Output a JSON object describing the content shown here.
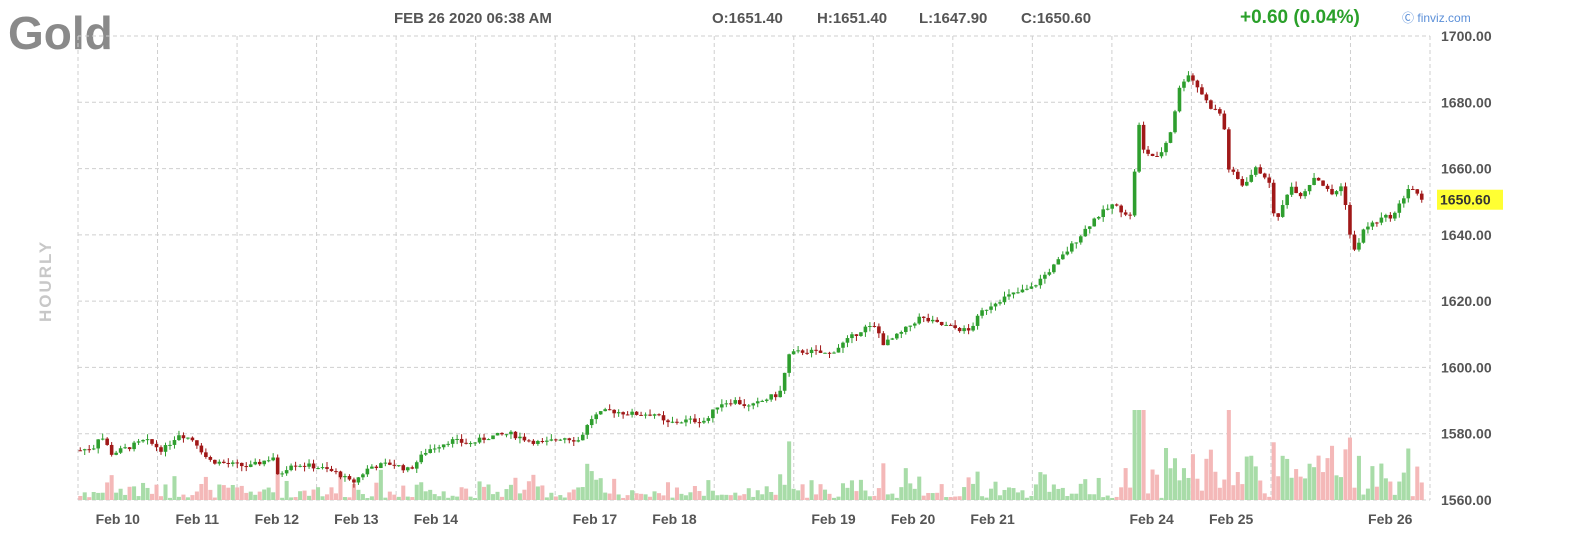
{
  "header": {
    "symbol": "Gold",
    "datetime": "FEB 26 2020 06:38 AM",
    "open": "O:1651.40",
    "high": "H:1651.40",
    "low": "L:1647.90",
    "close": "C:1650.60",
    "change": "+0.60 (0.04%)",
    "brand": "finviz.com",
    "interval": "HOURLY"
  },
  "colors": {
    "up": "#2e9e2e",
    "down": "#a01818",
    "vol_up": "#a8dca8",
    "vol_down": "#f4b8b8",
    "last_price_bg": "#ffff33"
  },
  "chart_data": {
    "type": "candlestick",
    "title": "Gold",
    "ylim": [
      1560,
      1700
    ],
    "yticks": [
      "1560.00",
      "1580.00",
      "1600.00",
      "1620.00",
      "1640.00",
      "1660.00",
      "1680.00",
      "1700.00"
    ],
    "last_price": "1650.60",
    "grid": true,
    "sessions": [
      {
        "label": "Feb 10",
        "close": 1574
      },
      {
        "label": "Feb 11",
        "close": 1570
      },
      {
        "label": "Feb 12",
        "close": 1568
      },
      {
        "label": "Feb 13",
        "close": 1578
      },
      {
        "label": "Feb 14",
        "close": 1578
      },
      {
        "label": "",
        "close": 1585
      },
      {
        "label": "Feb 17",
        "close": 1584
      },
      {
        "label": "Feb 18",
        "close": 1591
      },
      {
        "label": "",
        "close": 1604
      },
      {
        "label": "Feb 19",
        "close": 1610
      },
      {
        "label": "Feb 20",
        "close": 1612
      },
      {
        "label": "Feb 21",
        "close": 1632
      },
      {
        "label": "",
        "close": 1645
      },
      {
        "label": "Feb 24",
        "close": 1677
      },
      {
        "label": "Feb 25",
        "close": 1650
      },
      {
        "label": "",
        "close": 1642
      },
      {
        "label": "Feb 26",
        "close": 1650.6
      }
    ],
    "path": [
      [
        0,
        1575
      ],
      [
        14,
        1576
      ],
      [
        20,
        1580
      ],
      [
        32,
        1574
      ],
      [
        50,
        1576
      ],
      [
        66,
        1578
      ],
      [
        84,
        1575
      ],
      [
        100,
        1580
      ],
      [
        116,
        1578
      ],
      [
        130,
        1572
      ],
      [
        148,
        1571
      ],
      [
        172,
        1570
      ],
      [
        196,
        1573
      ],
      [
        200,
        1567
      ],
      [
        214,
        1571
      ],
      [
        240,
        1570
      ],
      [
        262,
        1568
      ],
      [
        276,
        1565
      ],
      [
        294,
        1570
      ],
      [
        316,
        1571
      ],
      [
        334,
        1569
      ],
      [
        352,
        1575
      ],
      [
        376,
        1578
      ],
      [
        396,
        1577
      ],
      [
        414,
        1579
      ],
      [
        436,
        1580
      ],
      [
        456,
        1578
      ],
      [
        470,
        1577
      ],
      [
        490,
        1579
      ],
      [
        506,
        1578
      ],
      [
        520,
        1585
      ],
      [
        536,
        1587
      ],
      [
        560,
        1586
      ],
      [
        584,
        1586
      ],
      [
        594,
        1583
      ],
      [
        616,
        1584
      ],
      [
        636,
        1584
      ],
      [
        648,
        1589
      ],
      [
        664,
        1590
      ],
      [
        680,
        1588
      ],
      [
        700,
        1591
      ],
      [
        710,
        1592
      ],
      [
        720,
        1604
      ],
      [
        736,
        1605
      ],
      [
        760,
        1604
      ],
      [
        778,
        1608
      ],
      [
        796,
        1612
      ],
      [
        808,
        1612
      ],
      [
        816,
        1607
      ],
      [
        832,
        1610
      ],
      [
        852,
        1615
      ],
      [
        872,
        1613
      ],
      [
        886,
        1612
      ],
      [
        902,
        1611
      ],
      [
        916,
        1617
      ],
      [
        930,
        1620
      ],
      [
        946,
        1622
      ],
      [
        966,
        1624
      ],
      [
        990,
        1631
      ],
      [
        1010,
        1638
      ],
      [
        1030,
        1645
      ],
      [
        1048,
        1649
      ],
      [
        1060,
        1647
      ],
      [
        1068,
        1645
      ],
      [
        1074,
        1680
      ],
      [
        1076,
        1666
      ],
      [
        1094,
        1663
      ],
      [
        1106,
        1670
      ],
      [
        1116,
        1684
      ],
      [
        1124,
        1689
      ],
      [
        1136,
        1684
      ],
      [
        1146,
        1679
      ],
      [
        1160,
        1676
      ],
      [
        1166,
        1660
      ],
      [
        1180,
        1655
      ],
      [
        1194,
        1660
      ],
      [
        1206,
        1657
      ],
      [
        1214,
        1643
      ],
      [
        1228,
        1655
      ],
      [
        1240,
        1652
      ],
      [
        1254,
        1658
      ],
      [
        1270,
        1652
      ],
      [
        1282,
        1655
      ],
      [
        1292,
        1634
      ],
      [
        1304,
        1642
      ],
      [
        1322,
        1645
      ],
      [
        1334,
        1646
      ],
      [
        1350,
        1655
      ],
      [
        1362,
        1650
      ]
    ],
    "volume_max": 100
  }
}
